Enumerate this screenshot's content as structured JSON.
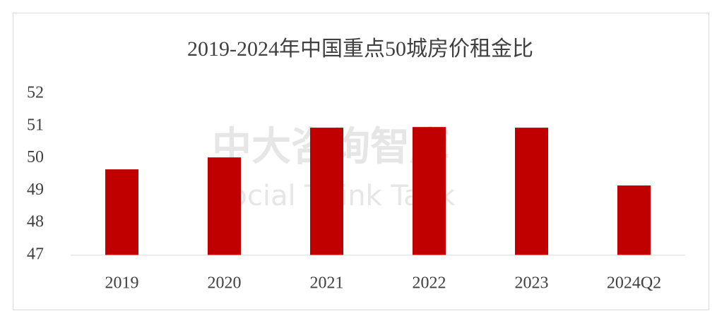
{
  "chart_data": {
    "type": "bar",
    "title": "2019-2024年中国重点50城房价租金比",
    "watermark": [
      "中大咨询智库",
      "Social Think Tank"
    ],
    "categories": [
      "2019",
      "2020",
      "2021",
      "2022",
      "2023",
      "2024Q2"
    ],
    "values": [
      49.66,
      50.03,
      50.95,
      50.97,
      50.95,
      49.16
    ],
    "color": "#c00000",
    "ylim": [
      47,
      52
    ],
    "yticks": [
      47,
      48,
      49,
      50,
      51,
      52
    ],
    "grid": false
  }
}
